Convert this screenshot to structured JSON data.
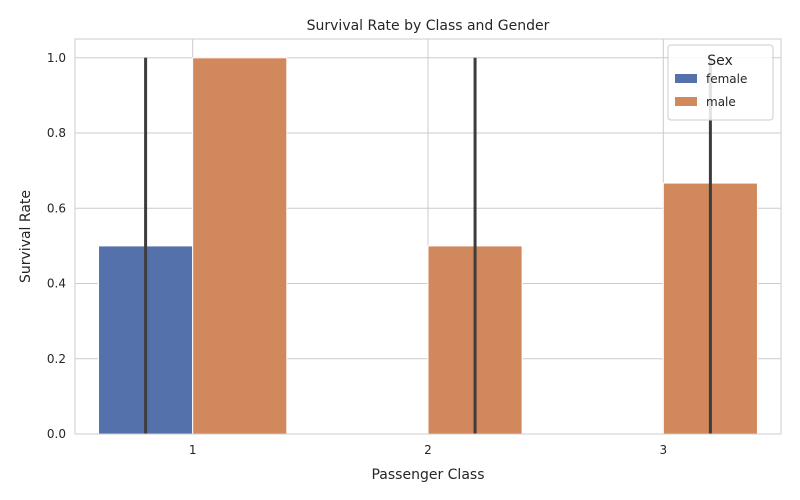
{
  "chart_data": {
    "type": "bar",
    "title": "Survival Rate by Class and Gender",
    "xlabel": "Passenger Class",
    "ylabel": "Survival Rate",
    "categories": [
      "1",
      "2",
      "3"
    ],
    "ylim": [
      0,
      1.05
    ],
    "yticks": [
      "0.0",
      "0.2",
      "0.4",
      "0.6",
      "0.8",
      "1.0"
    ],
    "grid": true,
    "legend": {
      "title": "Sex",
      "placement": "top-right"
    },
    "series": [
      {
        "name": "female",
        "color": "#5471ab",
        "values": [
          0.5,
          null,
          null
        ],
        "ci": [
          [
            0.0,
            1.0
          ],
          null,
          null
        ]
      },
      {
        "name": "male",
        "color": "#d1885c",
        "values": [
          1.0,
          0.5,
          0.667
        ],
        "ci": [
          null,
          [
            0.0,
            1.0
          ],
          [
            0.0,
            1.0
          ]
        ]
      }
    ]
  }
}
